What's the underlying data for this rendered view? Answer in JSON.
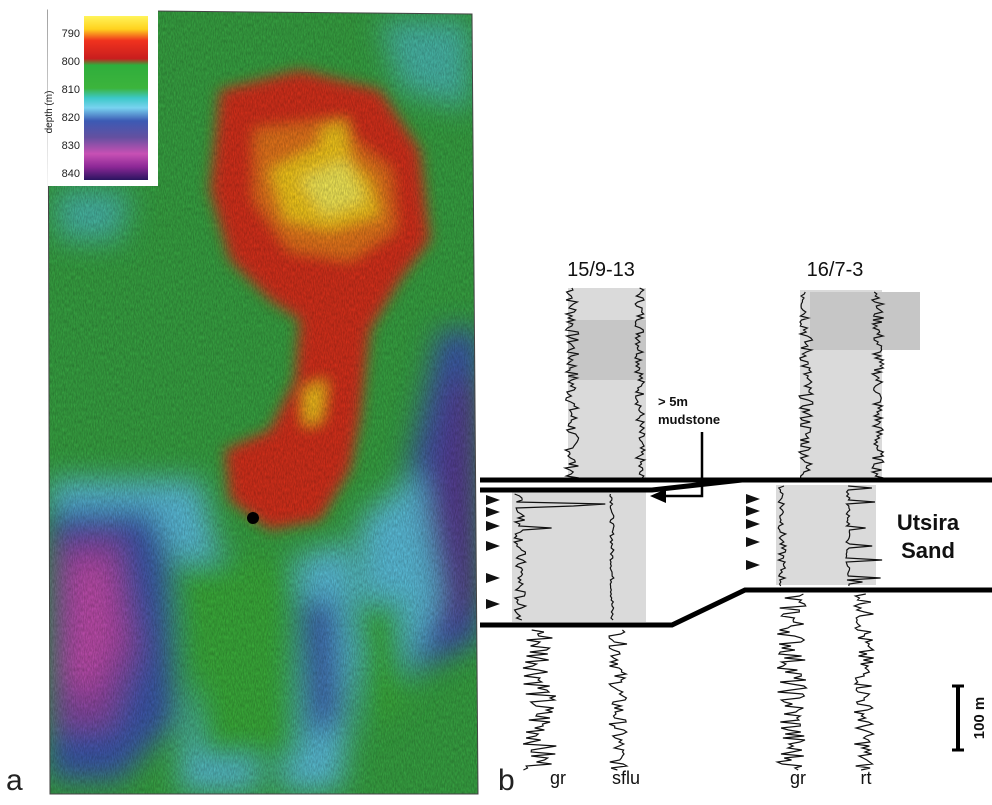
{
  "panel_a": {
    "letter": "a",
    "colorbar": {
      "axis_label": "depth (m)",
      "ticks": [
        "790",
        "800",
        "810",
        "820",
        "830",
        "840"
      ]
    }
  },
  "panel_b": {
    "letter": "b",
    "wells": [
      {
        "title": "15/9-13",
        "curves": [
          "gr",
          "sflu"
        ]
      },
      {
        "title": "16/7-3",
        "curves": [
          "gr",
          "rt"
        ]
      }
    ],
    "annotation": {
      "line1": "> 5m",
      "line2": "mudstone"
    },
    "unit_label": {
      "line1": "Utsira",
      "line2": "Sand"
    },
    "scale_bar": "100 m"
  },
  "colors": {
    "depth_scale": [
      "#fff45a",
      "#ffd21e",
      "#f0321e",
      "#d21e1e",
      "#2fae3c",
      "#3cb43c",
      "#3cc8c8",
      "#78d2f0",
      "#3c5ab4",
      "#6450a0",
      "#c850b4",
      "#8c2896",
      "#2a1460"
    ],
    "well_fill": "#dadada",
    "shale_fill": "#c6c6c6"
  }
}
